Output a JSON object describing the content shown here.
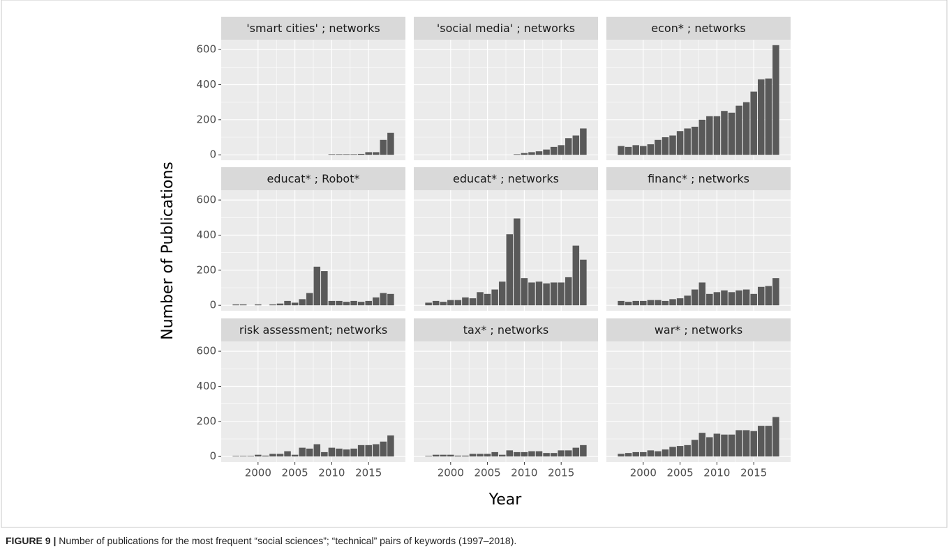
{
  "figure": {
    "xlabel": "Year",
    "ylabel": "Number of Publications",
    "caption_label": "FIGURE 9 |",
    "caption": "Number of publications for the most frequent “social sciences”; “technical” pairs of keywords (1997–2018)."
  },
  "chart_data": [
    {
      "type": "bar",
      "title": "'smart cities' ; networks",
      "color": "#595959",
      "grid": true,
      "x": [
        1997,
        1998,
        1999,
        2000,
        2001,
        2002,
        2003,
        2004,
        2005,
        2006,
        2007,
        2008,
        2009,
        2010,
        2011,
        2012,
        2013,
        2014,
        2015,
        2016,
        2017,
        2018
      ],
      "values": [
        null,
        null,
        null,
        null,
        null,
        null,
        null,
        null,
        null,
        null,
        null,
        null,
        null,
        3,
        3,
        3,
        3,
        5,
        15,
        15,
        85,
        125
      ],
      "xlim": [
        1995,
        2020
      ],
      "xticks": [
        2000,
        2005,
        2010,
        2015
      ],
      "ylim": [
        -31,
        656
      ],
      "yticks": [
        0,
        200,
        400,
        600
      ]
    },
    {
      "type": "bar",
      "title": "'social media' ; networks",
      "color": "#595959",
      "grid": true,
      "x": [
        1997,
        1998,
        1999,
        2000,
        2001,
        2002,
        2003,
        2004,
        2005,
        2006,
        2007,
        2008,
        2009,
        2010,
        2011,
        2012,
        2013,
        2014,
        2015,
        2016,
        2017,
        2018
      ],
      "values": [
        null,
        null,
        null,
        null,
        null,
        null,
        null,
        null,
        null,
        null,
        null,
        null,
        3,
        10,
        15,
        20,
        30,
        45,
        55,
        95,
        110,
        150
      ],
      "xlim": [
        1995,
        2020
      ],
      "xticks": [
        2000,
        2005,
        2010,
        2015
      ],
      "ylim": [
        -31,
        656
      ],
      "yticks": [
        0,
        200,
        400,
        600
      ]
    },
    {
      "type": "bar",
      "title": "econ* ; networks",
      "color": "#595959",
      "grid": true,
      "x": [
        1997,
        1998,
        1999,
        2000,
        2001,
        2002,
        2003,
        2004,
        2005,
        2006,
        2007,
        2008,
        2009,
        2010,
        2011,
        2012,
        2013,
        2014,
        2015,
        2016,
        2017,
        2018
      ],
      "values": [
        50,
        45,
        55,
        50,
        60,
        85,
        100,
        110,
        135,
        150,
        160,
        200,
        220,
        220,
        250,
        240,
        280,
        300,
        360,
        430,
        435,
        625
      ],
      "xlim": [
        1995,
        2020
      ],
      "xticks": [
        2000,
        2005,
        2010,
        2015
      ],
      "ylim": [
        -31,
        656
      ],
      "yticks": [
        0,
        200,
        400,
        600
      ]
    },
    {
      "type": "bar",
      "title": "educat* ; Robot*",
      "color": "#595959",
      "grid": true,
      "x": [
        1997,
        1998,
        1999,
        2000,
        2001,
        2002,
        2003,
        2004,
        2005,
        2006,
        2007,
        2008,
        2009,
        2010,
        2011,
        2012,
        2013,
        2014,
        2015,
        2016,
        2017,
        2018
      ],
      "values": [
        5,
        5,
        null,
        5,
        null,
        5,
        10,
        25,
        15,
        35,
        70,
        220,
        195,
        25,
        25,
        20,
        25,
        20,
        25,
        45,
        70,
        65
      ],
      "xlim": [
        1995,
        2020
      ],
      "xticks": [
        2000,
        2005,
        2010,
        2015
      ],
      "ylim": [
        -31,
        656
      ],
      "yticks": [
        0,
        200,
        400,
        600
      ]
    },
    {
      "type": "bar",
      "title": "educat* ; networks",
      "color": "#595959",
      "grid": true,
      "x": [
        1997,
        1998,
        1999,
        2000,
        2001,
        2002,
        2003,
        2004,
        2005,
        2006,
        2007,
        2008,
        2009,
        2010,
        2011,
        2012,
        2013,
        2014,
        2015,
        2016,
        2017,
        2018
      ],
      "values": [
        15,
        25,
        20,
        30,
        30,
        45,
        40,
        75,
        65,
        90,
        135,
        405,
        495,
        155,
        130,
        135,
        125,
        130,
        130,
        160,
        340,
        260
      ],
      "xlim": [
        1995,
        2020
      ],
      "xticks": [
        2000,
        2005,
        2010,
        2015
      ],
      "ylim": [
        -31,
        656
      ],
      "yticks": [
        0,
        200,
        400,
        600
      ]
    },
    {
      "type": "bar",
      "title": "financ* ; networks",
      "color": "#595959",
      "grid": true,
      "x": [
        1997,
        1998,
        1999,
        2000,
        2001,
        2002,
        2003,
        2004,
        2005,
        2006,
        2007,
        2008,
        2009,
        2010,
        2011,
        2012,
        2013,
        2014,
        2015,
        2016,
        2017,
        2018
      ],
      "values": [
        25,
        20,
        25,
        25,
        30,
        30,
        25,
        35,
        40,
        55,
        90,
        130,
        65,
        75,
        85,
        75,
        85,
        90,
        65,
        105,
        110,
        155
      ],
      "xlim": [
        1995,
        2020
      ],
      "xticks": [
        2000,
        2005,
        2010,
        2015
      ],
      "ylim": [
        -31,
        656
      ],
      "yticks": [
        0,
        200,
        400,
        600
      ]
    },
    {
      "type": "bar",
      "title": "risk assessment; networks",
      "color": "#595959",
      "grid": true,
      "x": [
        1997,
        1998,
        1999,
        2000,
        2001,
        2002,
        2003,
        2004,
        2005,
        2006,
        2007,
        2008,
        2009,
        2010,
        2011,
        2012,
        2013,
        2014,
        2015,
        2016,
        2017,
        2018
      ],
      "values": [
        3,
        3,
        3,
        10,
        5,
        15,
        15,
        30,
        10,
        50,
        45,
        70,
        25,
        50,
        45,
        40,
        45,
        65,
        65,
        70,
        85,
        120
      ],
      "xlim": [
        1995,
        2020
      ],
      "xticks": [
        2000,
        2005,
        2010,
        2015
      ],
      "ylim": [
        -31,
        656
      ],
      "yticks": [
        0,
        200,
        400,
        600
      ]
    },
    {
      "type": "bar",
      "title": "tax* ; networks",
      "color": "#595959",
      "grid": true,
      "x": [
        1997,
        1998,
        1999,
        2000,
        2001,
        2002,
        2003,
        2004,
        2005,
        2006,
        2007,
        2008,
        2009,
        2010,
        2011,
        2012,
        2013,
        2014,
        2015,
        2016,
        2017,
        2018
      ],
      "values": [
        3,
        10,
        10,
        10,
        5,
        5,
        15,
        15,
        15,
        25,
        10,
        35,
        25,
        25,
        30,
        30,
        20,
        20,
        35,
        35,
        50,
        65
      ],
      "xlim": [
        1995,
        2020
      ],
      "xticks": [
        2000,
        2005,
        2010,
        2015
      ],
      "ylim": [
        -31,
        656
      ],
      "yticks": [
        0,
        200,
        400,
        600
      ]
    },
    {
      "type": "bar",
      "title": "war* ; networks",
      "color": "#595959",
      "grid": true,
      "x": [
        1997,
        1998,
        1999,
        2000,
        2001,
        2002,
        2003,
        2004,
        2005,
        2006,
        2007,
        2008,
        2009,
        2010,
        2011,
        2012,
        2013,
        2014,
        2015,
        2016,
        2017,
        2018
      ],
      "values": [
        15,
        20,
        25,
        25,
        35,
        30,
        40,
        55,
        60,
        65,
        95,
        135,
        110,
        130,
        125,
        125,
        150,
        150,
        145,
        175,
        175,
        225
      ],
      "xlim": [
        1995,
        2020
      ],
      "xticks": [
        2000,
        2005,
        2010,
        2015
      ],
      "ylim": [
        -31,
        656
      ],
      "yticks": [
        0,
        200,
        400,
        600
      ]
    }
  ]
}
